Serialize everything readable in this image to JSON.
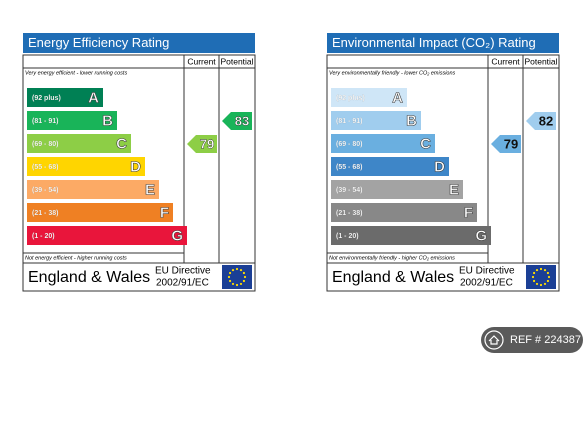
{
  "panels": [
    {
      "title": "Energy Efficiency Rating",
      "headers": [
        "Current",
        "Potential"
      ],
      "top_note": "Very energy efficient - lower running costs",
      "bands": [
        {
          "range": "(92 plus)",
          "letter": "A",
          "color": "#008054"
        },
        {
          "range": "(81 - 91)",
          "letter": "B",
          "color": "#19b459"
        },
        {
          "range": "(69 - 80)",
          "letter": "C",
          "color": "#8dce46"
        },
        {
          "range": "(55 - 68)",
          "letter": "D",
          "color": "#ffd500"
        },
        {
          "range": "(39 - 54)",
          "letter": "E",
          "color": "#fcaa65"
        },
        {
          "range": "(21 - 38)",
          "letter": "F",
          "color": "#ef8023"
        },
        {
          "range": "(1 - 20)",
          "letter": "G",
          "color": "#e9153b"
        }
      ],
      "current": 79,
      "potential": 83,
      "bottom_note": "Not energy efficient - higher running costs",
      "footer": {
        "region": "England & Wales",
        "directive": [
          "EU Directive",
          "2002/91/EC"
        ]
      }
    },
    {
      "title": "Environmental Impact (CO₂) Rating",
      "headers": [
        "Current",
        "Potential"
      ],
      "top_note": "Very environmentally friendly - lower CO₂ emissions",
      "bands": [
        {
          "range": "(92 plus)",
          "letter": "A",
          "color": "#cfe6f7"
        },
        {
          "range": "(81 - 91)",
          "letter": "B",
          "color": "#a0cdee"
        },
        {
          "range": "(69 - 80)",
          "letter": "C",
          "color": "#6aafe0"
        },
        {
          "range": "(55 - 68)",
          "letter": "D",
          "color": "#3e86c8"
        },
        {
          "range": "(39 - 54)",
          "letter": "E",
          "color": "#a3a3a3"
        },
        {
          "range": "(21 - 38)",
          "letter": "F",
          "color": "#888888"
        },
        {
          "range": "(1 - 20)",
          "letter": "G",
          "color": "#6b6b6b"
        }
      ],
      "current": 79,
      "potential": 82,
      "bottom_note": "Not environmentally friendly - higher CO₂ emissions",
      "footer": {
        "region": "England & Wales",
        "directive": [
          "EU Directive",
          "2002/91/EC"
        ]
      }
    }
  ],
  "ref": "REF # 224387"
}
